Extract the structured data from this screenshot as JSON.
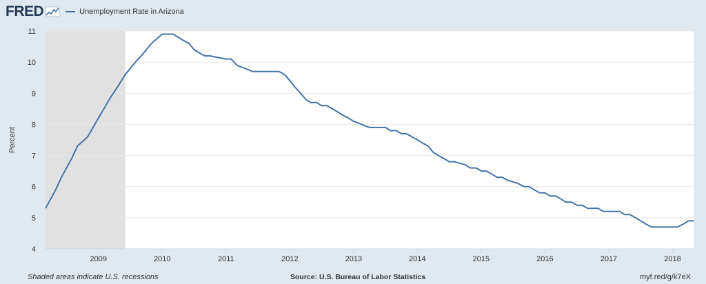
{
  "brand": {
    "logo_text": "FRED",
    "logo_icon": "fred-chart-icon"
  },
  "footer": {
    "recession_note": "Shaded areas indicate U.S. recessions",
    "source": "Source: U.S. Bureau of Labor Statistics",
    "link": "myf.red/g/k7eX"
  },
  "colors": {
    "line": "#4572a7",
    "background": "#e1e9f0",
    "plot": "#ffffff",
    "recession": "#e1e1e1"
  },
  "chart_data": {
    "type": "line",
    "title": "",
    "xlabel": "",
    "ylabel": "Percent",
    "x_unit": "decimal year",
    "xlim": [
      2008.17,
      2018.33
    ],
    "ylim": [
      4,
      11
    ],
    "y_ticks": [
      4,
      5,
      6,
      7,
      8,
      9,
      10,
      11
    ],
    "y_tick_labels": [
      "4",
      "5",
      "6",
      "7",
      "8",
      "9",
      "10",
      "11"
    ],
    "x_ticks": [
      2009,
      2010,
      2011,
      2012,
      2013,
      2014,
      2015,
      2016,
      2017,
      2018
    ],
    "x_tick_labels": [
      "2009",
      "2010",
      "2011",
      "2012",
      "2013",
      "2014",
      "2015",
      "2016",
      "2017",
      "2018"
    ],
    "grid": true,
    "legend_position": "top-left",
    "recessions": [
      {
        "start": 2008.17,
        "end": 2009.42
      }
    ],
    "series": [
      {
        "name": "Unemployment Rate in Arizona",
        "x": [
          2008.17,
          2008.33,
          2008.42,
          2008.58,
          2008.67,
          2008.83,
          2009.0,
          2009.17,
          2009.33,
          2009.42,
          2009.5,
          2009.58,
          2009.67,
          2009.75,
          2009.83,
          2010.0,
          2010.17,
          2010.25,
          2010.33,
          2010.42,
          2010.5,
          2010.58,
          2010.67,
          2010.75,
          2011.0,
          2011.08,
          2011.17,
          2011.42,
          2011.5,
          2011.58,
          2011.67,
          2011.75,
          2011.83,
          2011.92,
          2012.0,
          2012.08,
          2012.17,
          2012.25,
          2012.33,
          2012.42,
          2012.5,
          2012.58,
          2012.67,
          2012.83,
          2012.92,
          2013.0,
          2013.25,
          2013.33,
          2013.5,
          2013.58,
          2013.67,
          2013.75,
          2013.83,
          2014.0,
          2014.08,
          2014.17,
          2014.25,
          2014.33,
          2014.42,
          2014.5,
          2014.58,
          2014.75,
          2014.83,
          2014.92,
          2015.0,
          2015.08,
          2015.17,
          2015.25,
          2015.33,
          2015.42,
          2015.58,
          2015.67,
          2015.75,
          2015.83,
          2015.92,
          2016.0,
          2016.08,
          2016.17,
          2016.25,
          2016.33,
          2016.42,
          2016.5,
          2016.58,
          2016.67,
          2016.83,
          2016.92,
          2017.0,
          2017.08,
          2017.17,
          2017.25,
          2017.33,
          2017.42,
          2017.5,
          2017.58,
          2017.67,
          2017.75,
          2017.83,
          2017.92,
          2018.0,
          2018.08,
          2018.17,
          2018.25,
          2018.33
        ],
        "values": [
          5.3,
          5.9,
          6.3,
          6.9,
          7.3,
          7.6,
          8.2,
          8.8,
          9.3,
          9.6,
          9.8,
          10.0,
          10.2,
          10.4,
          10.6,
          10.9,
          10.9,
          10.8,
          10.7,
          10.6,
          10.4,
          10.3,
          10.2,
          10.2,
          10.1,
          10.1,
          9.9,
          9.7,
          9.7,
          9.7,
          9.7,
          9.7,
          9.7,
          9.6,
          9.4,
          9.2,
          9.0,
          8.8,
          8.7,
          8.7,
          8.6,
          8.6,
          8.5,
          8.3,
          8.2,
          8.1,
          7.9,
          7.9,
          7.9,
          7.8,
          7.8,
          7.7,
          7.7,
          7.5,
          7.4,
          7.3,
          7.1,
          7.0,
          6.9,
          6.8,
          6.8,
          6.7,
          6.6,
          6.6,
          6.5,
          6.5,
          6.4,
          6.3,
          6.3,
          6.2,
          6.1,
          6.0,
          6.0,
          5.9,
          5.8,
          5.8,
          5.7,
          5.7,
          5.6,
          5.5,
          5.5,
          5.4,
          5.4,
          5.3,
          5.3,
          5.2,
          5.2,
          5.2,
          5.2,
          5.1,
          5.1,
          5.0,
          4.9,
          4.8,
          4.7,
          4.7,
          4.7,
          4.7,
          4.7,
          4.7,
          4.8,
          4.9,
          4.9
        ]
      }
    ]
  }
}
